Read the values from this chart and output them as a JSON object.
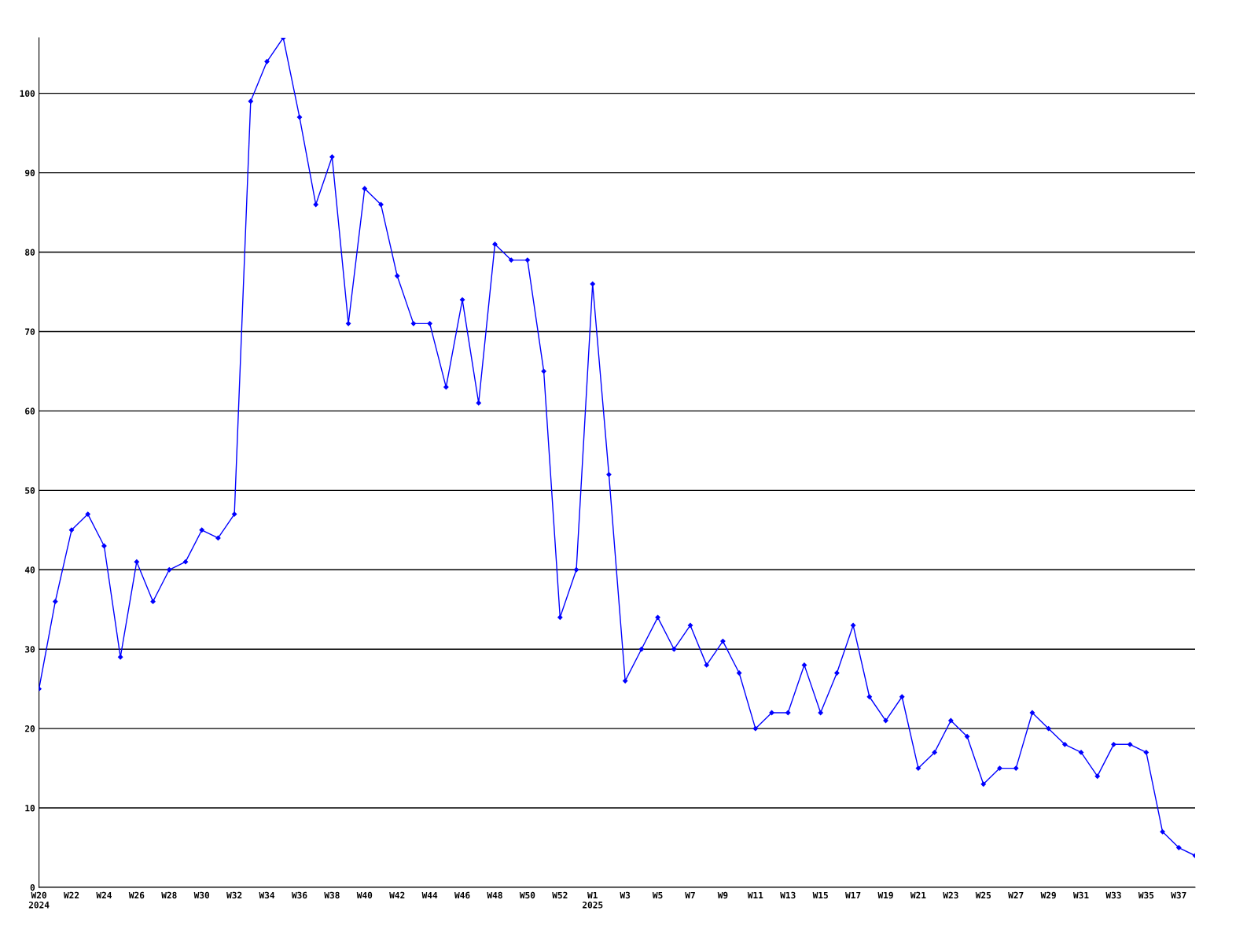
{
  "chart_data": {
    "type": "line",
    "categories": [
      "W20\n2024",
      null,
      "W22",
      null,
      "W24",
      null,
      "W26",
      null,
      "W28",
      null,
      "W30",
      null,
      "W32",
      null,
      "W34",
      null,
      "W36",
      null,
      "W38",
      null,
      "W40",
      null,
      "W42",
      null,
      "W44",
      null,
      "W46",
      null,
      "W48",
      null,
      "W50",
      null,
      "W52",
      null,
      "W1\n2025",
      null,
      "W3",
      null,
      "W5",
      null,
      "W7",
      null,
      "W9",
      null,
      "W11",
      null,
      "W13",
      null,
      "W15",
      null,
      "W17",
      null,
      "W19",
      null,
      "W21",
      null,
      "W23",
      null,
      "W25",
      null,
      "W27",
      null,
      "W29",
      null,
      "W31",
      null,
      "W33",
      null,
      "W35",
      null,
      "W37",
      null
    ],
    "series": [
      {
        "color": "#0000ff",
        "values": [
          25,
          36,
          45,
          47,
          43,
          29,
          41,
          36,
          40,
          41,
          45,
          44,
          47,
          99,
          104,
          107,
          97,
          86,
          92,
          71,
          88,
          86,
          77,
          71,
          71,
          63,
          74,
          61,
          81,
          79,
          79,
          65,
          34,
          40,
          76,
          52,
          26,
          30,
          34,
          30,
          33,
          28,
          31,
          27,
          20,
          22,
          22,
          28,
          22,
          27,
          33,
          24,
          21,
          24,
          15,
          17,
          21,
          19,
          13,
          15,
          15,
          22,
          20,
          18,
          17,
          14,
          18,
          18,
          17,
          7,
          5,
          4
        ]
      }
    ],
    "ylim": [
      0,
      107
    ],
    "yticks": [
      0,
      10,
      20,
      30,
      40,
      50,
      60,
      70,
      80,
      90,
      100
    ],
    "grid": "y",
    "marker": "diamond",
    "line_style": "solid",
    "legend": false
  }
}
